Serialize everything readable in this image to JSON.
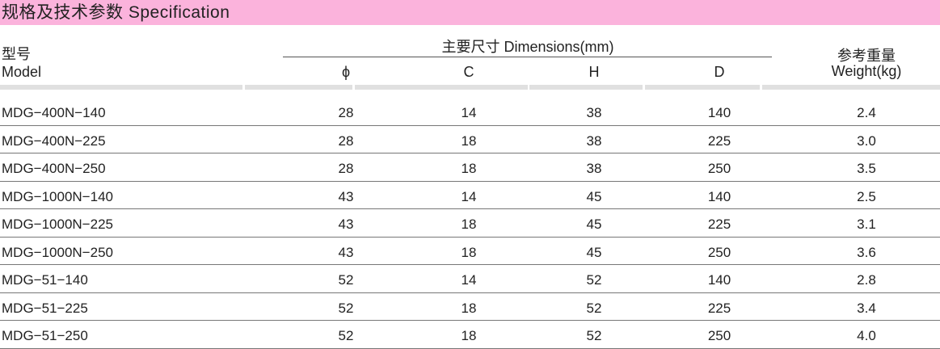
{
  "title": "规格及技术参数 Specification",
  "header": {
    "model_cn": "型号",
    "model_en": "Model",
    "dimensions": "主要尺寸  Dimensions(mm)",
    "phi": "ϕ",
    "c": "C",
    "h": "H",
    "d": "D",
    "weight_cn": "参考重量",
    "weight_en": "Weight(kg)"
  },
  "rows": [
    [
      "MDG−400N−140",
      "28",
      "14",
      "38",
      "140",
      "2.4"
    ],
    [
      "MDG−400N−225",
      "28",
      "18",
      "38",
      "225",
      "3.0"
    ],
    [
      "MDG−400N−250",
      "28",
      "18",
      "38",
      "250",
      "3.5"
    ],
    [
      "MDG−1000N−140",
      "43",
      "14",
      "45",
      "140",
      "2.5"
    ],
    [
      "MDG−1000N−225",
      "43",
      "18",
      "45",
      "225",
      "3.1"
    ],
    [
      "MDG−1000N−250",
      "43",
      "18",
      "45",
      "250",
      "3.6"
    ],
    [
      "MDG−51−140",
      "52",
      "14",
      "52",
      "140",
      "2.8"
    ],
    [
      "MDG−51−225",
      "52",
      "18",
      "52",
      "225",
      "3.4"
    ],
    [
      "MDG−51−250",
      "52",
      "18",
      "52",
      "250",
      "4.0"
    ]
  ]
}
